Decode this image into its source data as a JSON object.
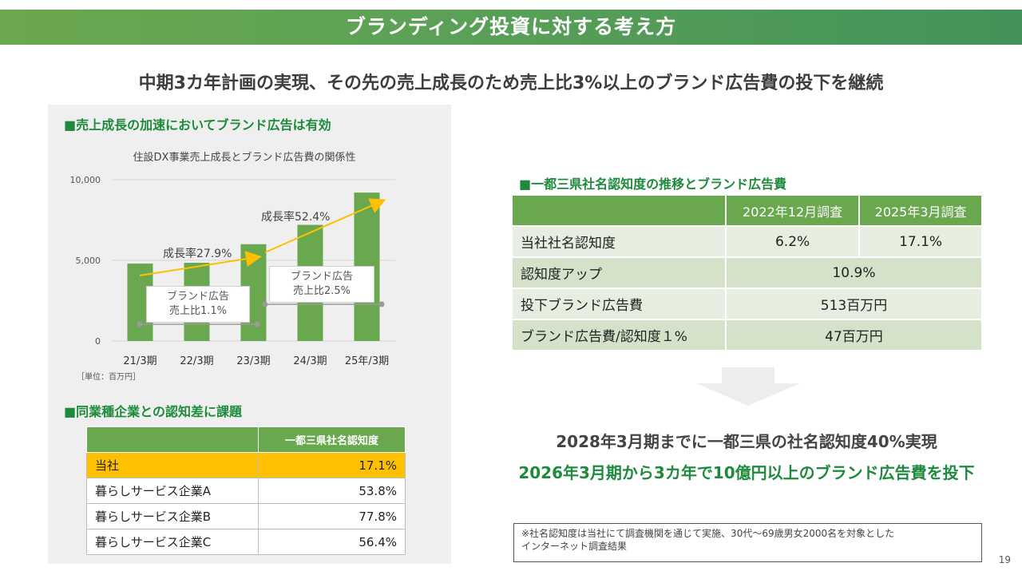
{
  "header": {
    "title": "ブランディング投資に対する考え方",
    "headline": "中期3カ年計画の実現、その先の売上成長のため売上比3%以上のブランド広告費の投下を継続"
  },
  "left": {
    "section1_title": "■売上成長の加速においてブランド広告は有効",
    "unit_note": "［単位：百万円］",
    "annotations": {
      "growth1": "成長率27.9%",
      "growth2": "成長率52.4%",
      "ratio1_line1": "ブランド広告",
      "ratio1_line2": "売上比1.1%",
      "ratio2_line1": "ブランド広告",
      "ratio2_line2": "売上比2.5%"
    },
    "section2_title": "■同業種企業との認知差に課題",
    "comparison": {
      "header": "一都三県社名認知度",
      "rows": [
        {
          "name": "当社",
          "value": "17.1%"
        },
        {
          "name": "暮らしサービス企業A",
          "value": "53.8%"
        },
        {
          "name": "暮らしサービス企業B",
          "value": "77.8%"
        },
        {
          "name": "暮らしサービス企業C",
          "value": "56.4%"
        }
      ]
    }
  },
  "chart_data": {
    "type": "bar",
    "title": "住設DX事業売上成長とブランド広告費の関係性",
    "categories": [
      "21/3期",
      "22/3期",
      "23/3期",
      "24/3期",
      "25年/3期"
    ],
    "values": [
      4800,
      4850,
      6000,
      7200,
      9200
    ],
    "ylim": [
      0,
      10000
    ],
    "yticks": [
      "0",
      "5,000",
      "10,000"
    ],
    "ytick_values": [
      0,
      5000,
      10000
    ],
    "bar_color": "#6aa84f",
    "arrow_color": "#ffc000"
  },
  "right": {
    "section_title": "■一都三県社名認知度の推移とブランド広告費",
    "table": {
      "col1": "2022年12月調査",
      "col2": "2025年3月調査",
      "rows": [
        {
          "label": "当社社名認知度",
          "v1": "6.2%",
          "v2": "17.1%"
        },
        {
          "label": "認知度アップ",
          "v": "10.9%"
        },
        {
          "label": "投下ブランド広告費",
          "v": "513百万円"
        },
        {
          "label": "ブランド広告費/認知度１%",
          "v": "47百万円"
        }
      ]
    },
    "conclusion1": "2028年3月期までに一都三県の社名認知度40%実現",
    "conclusion2": "2026年3月期から3カ年で10億円以上のブランド広告費を投下",
    "footnote_line1": "※社名認知度は当社にて調査機関を通じて実施、30代〜69歳男女2000名を対象とした",
    "footnote_line2": "インターネット調査結果"
  },
  "page_number": "19",
  "colors": {
    "brand_green": "#6aa84f",
    "accent_green": "#1e8a3c",
    "highlight": "#ffc000"
  }
}
